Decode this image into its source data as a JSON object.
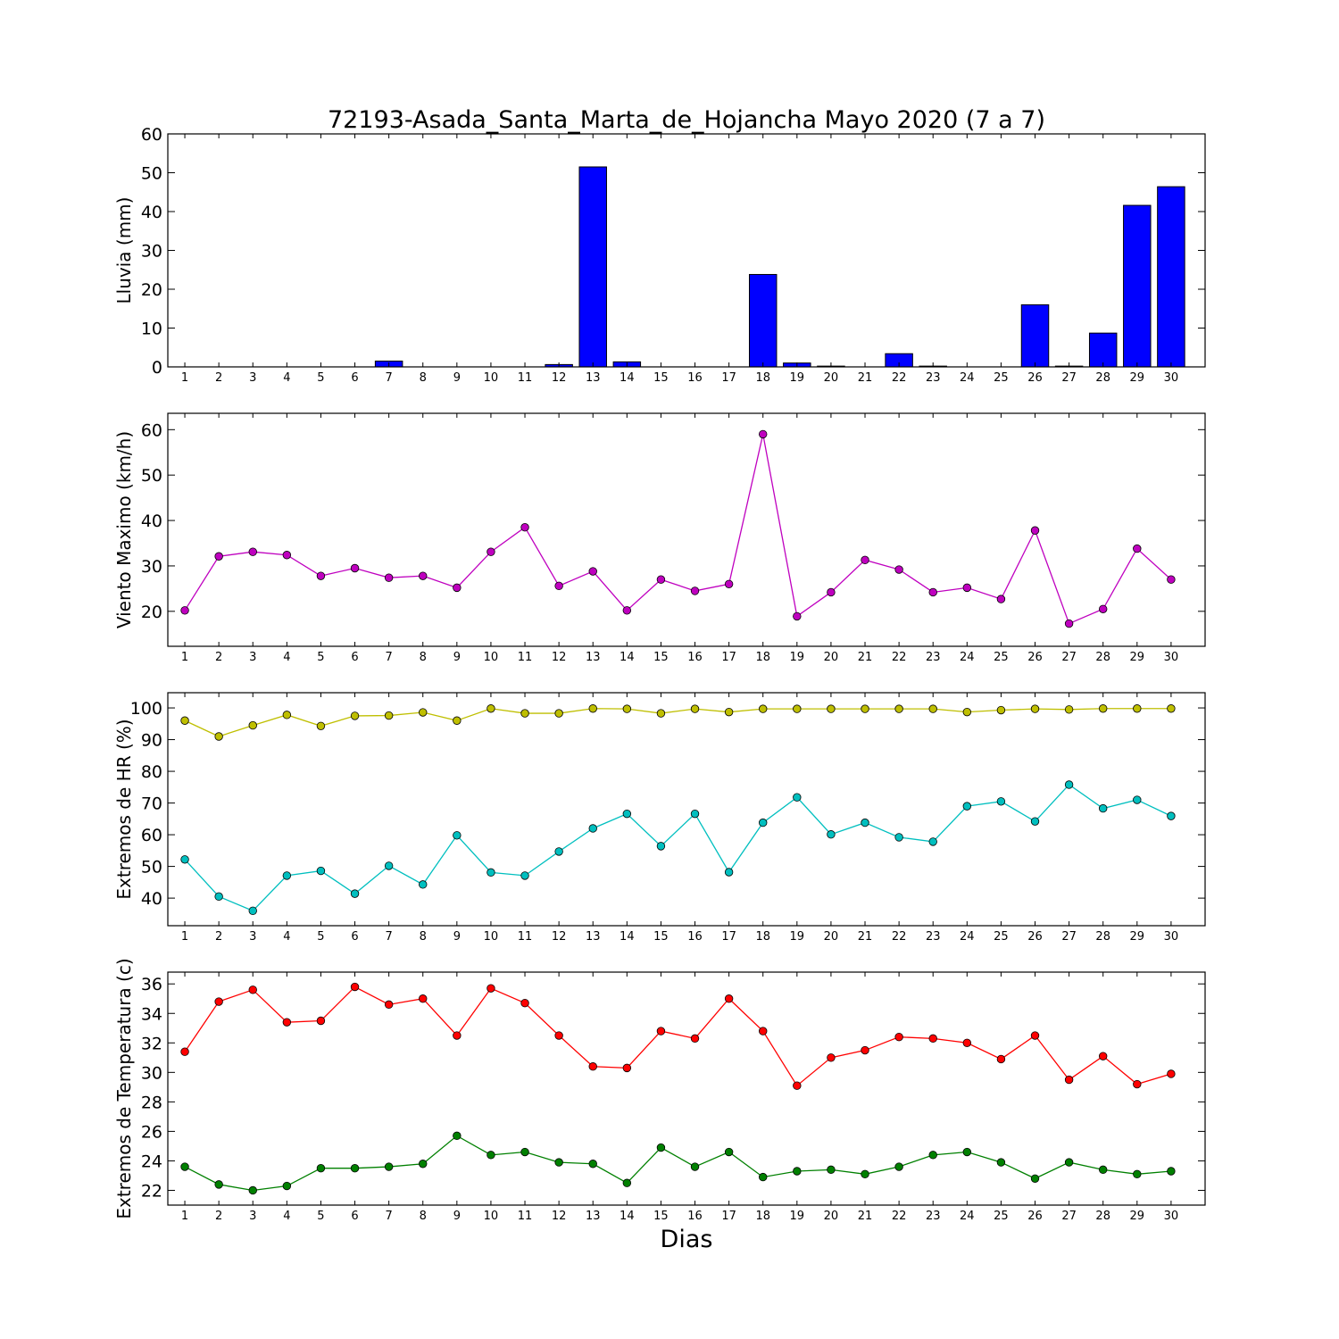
{
  "title": "72193-Asada_Santa_Marta_de_Hojancha Mayo 2020  (7 a 7)",
  "xlabel": "Dias",
  "chart_data": [
    {
      "type": "bar",
      "ylabel": "Lluvia (mm)",
      "ylim": [
        0,
        60
      ],
      "yticks": [
        0,
        10,
        20,
        30,
        40,
        50,
        60
      ],
      "categories": [
        "1",
        "2",
        "3",
        "4",
        "5",
        "6",
        "7",
        "8",
        "9",
        "10",
        "11",
        "12",
        "13",
        "14",
        "15",
        "16",
        "17",
        "18",
        "19",
        "20",
        "21",
        "22",
        "23",
        "24",
        "25",
        "26",
        "27",
        "28",
        "29",
        "30"
      ],
      "series": [
        {
          "color": "#0000ff",
          "values": [
            0,
            0,
            0,
            0,
            0,
            0,
            1.5,
            0,
            0,
            0,
            0,
            0.6,
            51.5,
            1.3,
            0,
            0,
            0,
            23.8,
            1.0,
            0.2,
            0,
            3.4,
            0.2,
            0,
            0,
            16.0,
            0.2,
            8.7,
            41.6,
            46.4
          ]
        }
      ],
      "grid": false
    },
    {
      "type": "line",
      "ylabel": "Viento Maximo (km/h)",
      "ylim": [
        12.3,
        63.6
      ],
      "yticks": [
        20,
        30,
        40,
        50,
        60
      ],
      "categories": [
        "1",
        "2",
        "3",
        "4",
        "5",
        "6",
        "7",
        "8",
        "9",
        "10",
        "11",
        "12",
        "13",
        "14",
        "15",
        "16",
        "17",
        "18",
        "19",
        "20",
        "21",
        "22",
        "23",
        "24",
        "25",
        "26",
        "27",
        "28",
        "29",
        "30"
      ],
      "series": [
        {
          "color": "#bf00bf",
          "values": [
            20.2,
            32.1,
            33.1,
            32.4,
            27.8,
            29.5,
            27.4,
            27.8,
            25.2,
            33.1,
            38.5,
            25.6,
            28.8,
            20.2,
            27.0,
            24.5,
            26.0,
            59.0,
            18.9,
            24.2,
            31.3,
            29.2,
            24.2,
            25.2,
            22.7,
            37.8,
            17.3,
            20.5,
            33.8,
            27.0
          ]
        }
      ],
      "grid": false
    },
    {
      "type": "line",
      "ylabel": "Extremos de HR (%)",
      "ylim": [
        31.3,
        104.8
      ],
      "yticks": [
        40,
        50,
        60,
        70,
        80,
        90,
        100
      ],
      "categories": [
        "1",
        "2",
        "3",
        "4",
        "5",
        "6",
        "7",
        "8",
        "9",
        "10",
        "11",
        "12",
        "13",
        "14",
        "15",
        "16",
        "17",
        "18",
        "19",
        "20",
        "21",
        "22",
        "23",
        "24",
        "25",
        "26",
        "27",
        "28",
        "29",
        "30"
      ],
      "series": [
        {
          "color": "#bfbf00",
          "values": [
            96.0,
            91.0,
            94.5,
            97.8,
            94.3,
            97.5,
            97.6,
            98.6,
            96.0,
            99.8,
            98.3,
            98.3,
            99.8,
            99.7,
            98.3,
            99.7,
            98.7,
            99.7,
            99.7,
            99.7,
            99.7,
            99.7,
            99.7,
            98.7,
            99.3,
            99.7,
            99.5,
            99.8,
            99.8,
            99.8
          ]
        },
        {
          "color": "#00bfbf",
          "values": [
            52.2,
            40.5,
            36.0,
            47.1,
            48.6,
            41.4,
            50.2,
            44.3,
            59.8,
            48.1,
            47.1,
            54.7,
            62.0,
            66.6,
            56.4,
            66.6,
            48.2,
            63.8,
            71.8,
            60.1,
            63.8,
            59.2,
            57.8,
            69.0,
            70.5,
            64.2,
            75.8,
            68.3,
            71.0,
            65.9
          ]
        }
      ],
      "grid": false
    },
    {
      "type": "line",
      "ylabel": "Extremos de Temperatura (c)",
      "ylim": [
        21.0,
        36.8
      ],
      "yticks": [
        22,
        24,
        26,
        28,
        30,
        32,
        34,
        36
      ],
      "categories": [
        "1",
        "2",
        "3",
        "4",
        "5",
        "6",
        "7",
        "8",
        "9",
        "10",
        "11",
        "12",
        "13",
        "14",
        "15",
        "16",
        "17",
        "18",
        "19",
        "20",
        "21",
        "22",
        "23",
        "24",
        "25",
        "26",
        "27",
        "28",
        "29",
        "30"
      ],
      "series": [
        {
          "color": "#ff0000",
          "values": [
            31.4,
            34.8,
            35.6,
            33.4,
            33.5,
            35.8,
            34.6,
            35.0,
            32.5,
            35.7,
            34.7,
            32.5,
            30.4,
            30.3,
            32.8,
            32.3,
            35.0,
            32.8,
            29.1,
            31.0,
            31.5,
            32.4,
            32.3,
            32.0,
            30.9,
            32.5,
            29.5,
            31.1,
            29.2,
            29.9
          ]
        },
        {
          "color": "#008000",
          "values": [
            23.6,
            22.4,
            22.0,
            22.3,
            23.5,
            23.5,
            23.6,
            23.8,
            25.7,
            24.4,
            24.6,
            23.9,
            23.8,
            22.5,
            24.9,
            23.6,
            24.6,
            22.9,
            23.3,
            23.4,
            23.1,
            23.6,
            24.4,
            24.6,
            23.9,
            22.8,
            23.9,
            23.4,
            23.1,
            23.3
          ]
        }
      ],
      "grid": false
    }
  ]
}
